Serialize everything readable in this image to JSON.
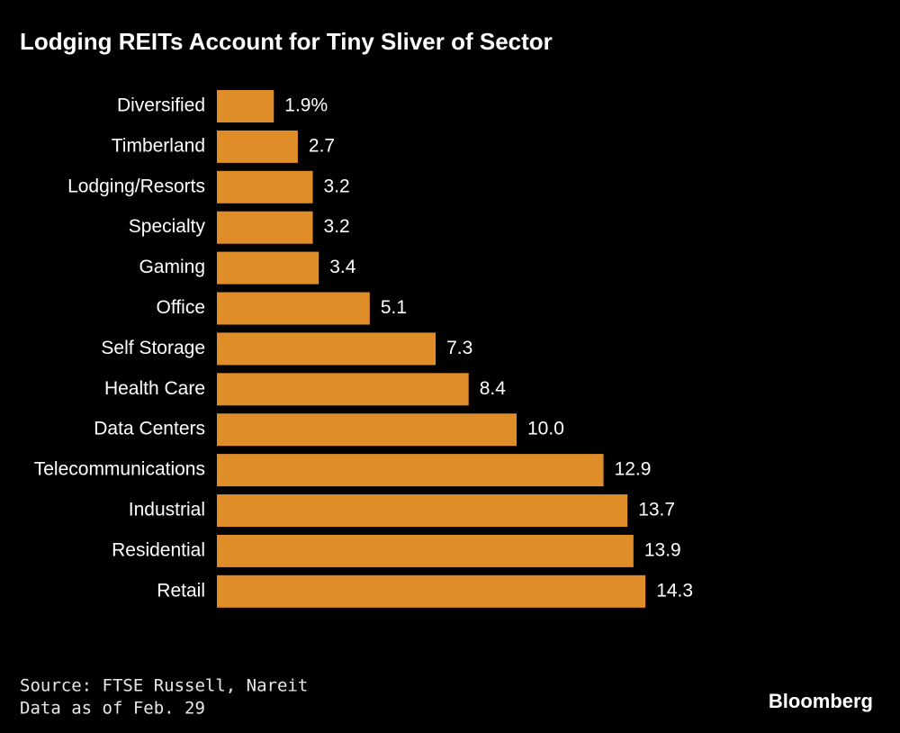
{
  "chart_data": {
    "type": "hbar",
    "title": "Lodging REITs Account for Tiny Sliver of Sector",
    "categories": [
      "Diversified",
      "Timberland",
      "Lodging/Resorts",
      "Specialty",
      "Gaming",
      "Office",
      "Self Storage",
      "Health Care",
      "Data Centers",
      "Telecommunications",
      "Industrial",
      "Residential",
      "Retail"
    ],
    "values": [
      1.9,
      2.7,
      3.2,
      3.2,
      3.4,
      5.1,
      7.3,
      8.4,
      10.0,
      12.9,
      13.7,
      13.9,
      14.3
    ],
    "value_labels": [
      "1.9%",
      "2.7",
      "3.2",
      "3.2",
      "3.4",
      "5.1",
      "7.3",
      "8.4",
      "10.0",
      "12.9",
      "13.7",
      "13.9",
      "14.3"
    ],
    "color": "#df8d28",
    "source": "Source: FTSE Russell, Nareit",
    "note": "Data as of Feb. 29",
    "brand": "Bloomberg"
  }
}
